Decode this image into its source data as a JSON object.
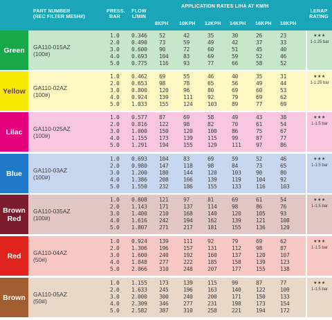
{
  "headers": {
    "part_number": "PART NUMBER",
    "part_number_sub": "(REC FILTER MESH#)",
    "press": "PRESS.",
    "press_sub": "BAR",
    "flow": "FLOW",
    "flow_sub": "L/MIN",
    "application": "APPLICATION RATES L/HA AT KM/H",
    "speeds": [
      "8KPH",
      "10KPH",
      "12KPH",
      "14KPH",
      "16KPH",
      "18KPH"
    ],
    "lerap": "LERAP",
    "lerap_sub": "RATING"
  },
  "colors": {
    "header": "#1aa6b8",
    "groups": [
      "#18a84b",
      "#f7ea00",
      "#e4007a",
      "#1f78c8",
      "#7b1c2e",
      "#e0231c",
      "#a15c2f"
    ],
    "rows": [
      "#c8e6c9",
      "#fff8c4",
      "#f8c6e0",
      "#c8d7f0",
      "#e2c6c3",
      "#f8c8c4",
      "#e9d7c7"
    ]
  },
  "groups": [
    {
      "name": "Green",
      "part": "GA110-015AZ",
      "mesh": "(100#)",
      "stars": "★★★",
      "lerap": "1-1.25 bar",
      "pressures": [
        "1.0",
        "2.0",
        "3.0",
        "4.0",
        "5.0"
      ],
      "flows": [
        "0.346",
        "0.490",
        "0.600",
        "0.693",
        "0.775"
      ],
      "rates": [
        [
          "52",
          "42",
          "35",
          "30",
          "26",
          "23"
        ],
        [
          "73",
          "59",
          "49",
          "42",
          "37",
          "33"
        ],
        [
          "90",
          "72",
          "60",
          "51",
          "45",
          "40"
        ],
        [
          "104",
          "83",
          "69",
          "59",
          "52",
          "46"
        ],
        [
          "116",
          "93",
          "77",
          "66",
          "58",
          "52"
        ]
      ]
    },
    {
      "name": "Yellow",
      "part": "GA110-02AZ",
      "mesh": "(100#)",
      "stars": "★★★",
      "lerap": "1-1.25 bar",
      "pressures": [
        "1.0",
        "2.0",
        "3.0",
        "4.0",
        "5.0"
      ],
      "flows": [
        "0.462",
        "0.653",
        "0.800",
        "0.924",
        "1.033"
      ],
      "rates": [
        [
          "69",
          "55",
          "46",
          "40",
          "35",
          "31"
        ],
        [
          "98",
          "78",
          "65",
          "56",
          "49",
          "44"
        ],
        [
          "120",
          "96",
          "80",
          "69",
          "60",
          "53"
        ],
        [
          "139",
          "111",
          "92",
          "79",
          "69",
          "62"
        ],
        [
          "155",
          "124",
          "103",
          "89",
          "77",
          "69"
        ]
      ]
    },
    {
      "name": "Lilac",
      "part": "GA110-025AZ",
      "mesh": "(100#)",
      "stars": "★★★",
      "lerap": "1-1.5 bar",
      "pressures": [
        "1.0",
        "2.0",
        "3.0",
        "4.0",
        "5.0"
      ],
      "flows": [
        "0.577",
        "0.816",
        "1.000",
        "1.155",
        "1.291"
      ],
      "rates": [
        [
          "87",
          "69",
          "58",
          "49",
          "43",
          "38"
        ],
        [
          "122",
          "98",
          "82",
          "70",
          "61",
          "54"
        ],
        [
          "150",
          "120",
          "100",
          "86",
          "75",
          "67"
        ],
        [
          "173",
          "139",
          "115",
          "99",
          "87",
          "77"
        ],
        [
          "194",
          "155",
          "129",
          "111",
          "97",
          "86"
        ]
      ]
    },
    {
      "name": "Blue",
      "part": "GA110-03AZ",
      "mesh": "(100#)",
      "stars": "★★★",
      "lerap": "1-1.5 bar",
      "pressures": [
        "1.0",
        "2.0",
        "3.0",
        "4.0",
        "5.0"
      ],
      "flows": [
        "0.693",
        "0.980",
        "1.200",
        "1.386",
        "1.550"
      ],
      "rates": [
        [
          "104",
          "83",
          "69",
          "59",
          "52",
          "46"
        ],
        [
          "147",
          "118",
          "98",
          "84",
          "73",
          "65"
        ],
        [
          "180",
          "144",
          "120",
          "103",
          "90",
          "80"
        ],
        [
          "208",
          "166",
          "139",
          "119",
          "104",
          "92"
        ],
        [
          "232",
          "186",
          "155",
          "133",
          "116",
          "103"
        ]
      ]
    },
    {
      "name": "Brown Red",
      "part": "GA110-035AZ",
      "mesh": "(100#)",
      "stars": "★★★",
      "lerap": "1-1.5 bar",
      "pressures": [
        "1.0",
        "2.0",
        "3.0",
        "4.0",
        "5.0"
      ],
      "flows": [
        "0.808",
        "1.143",
        "1.400",
        "1.616",
        "1.807"
      ],
      "rates": [
        [
          "121",
          "97",
          "81",
          "69",
          "61",
          "54"
        ],
        [
          "171",
          "137",
          "114",
          "98",
          "86",
          "76"
        ],
        [
          "210",
          "168",
          "140",
          "120",
          "105",
          "93"
        ],
        [
          "242",
          "194",
          "162",
          "139",
          "121",
          "108"
        ],
        [
          "271",
          "217",
          "181",
          "155",
          "136",
          "120"
        ]
      ]
    },
    {
      "name": "Red",
      "part": "GA110-04AZ",
      "mesh": "(50#)",
      "stars": "★★★",
      "lerap": "1-1.5 bar",
      "pressures": [
        "1.0",
        "2.0",
        "3.0",
        "4.0",
        "5.0"
      ],
      "flows": [
        "0.924",
        "1.306",
        "1.600",
        "1.848",
        "2.066"
      ],
      "rates": [
        [
          "139",
          "111",
          "92",
          "79",
          "69",
          "62"
        ],
        [
          "196",
          "157",
          "131",
          "112",
          "98",
          "87"
        ],
        [
          "240",
          "192",
          "160",
          "137",
          "120",
          "107"
        ],
        [
          "277",
          "222",
          "185",
          "158",
          "139",
          "123"
        ],
        [
          "310",
          "248",
          "207",
          "177",
          "155",
          "138"
        ]
      ]
    },
    {
      "name": "Brown",
      "part": "GA110-05AZ",
      "mesh": "(50#)",
      "stars": "★★★",
      "lerap": "1-1.5 bar",
      "pressures": [
        "1.0",
        "2.0",
        "3.0",
        "4.0",
        "5.0"
      ],
      "flows": [
        "1.155",
        "1.633",
        "2.000",
        "2.309",
        "2.582"
      ],
      "rates": [
        [
          "173",
          "139",
          "115",
          "99",
          "87",
          "77"
        ],
        [
          "245",
          "196",
          "163",
          "140",
          "122",
          "109"
        ],
        [
          "300",
          "240",
          "200",
          "171",
          "150",
          "133"
        ],
        [
          "346",
          "277",
          "231",
          "198",
          "173",
          "154"
        ],
        [
          "387",
          "310",
          "258",
          "221",
          "194",
          "172"
        ]
      ]
    }
  ]
}
